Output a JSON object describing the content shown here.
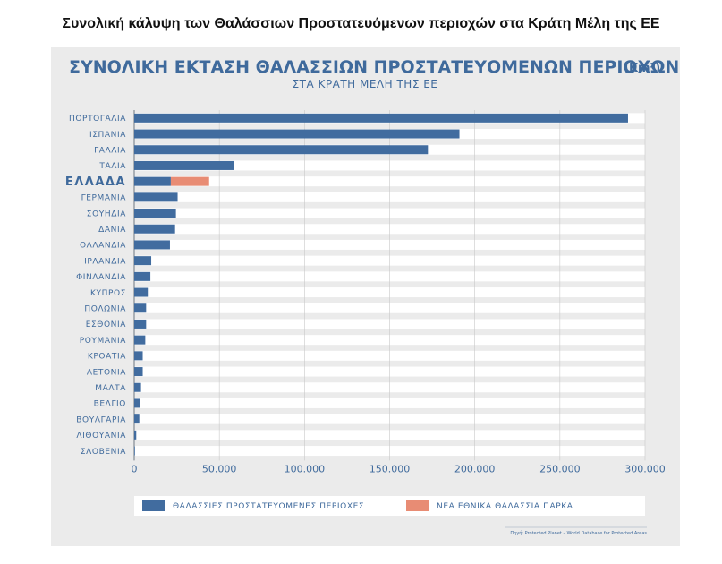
{
  "page": {
    "title": "Συνολική κάλυψη των Θαλάσσιων Προστατευόμενων περιοχών στα Κράτη Μέλη της ΕΕ"
  },
  "chart_data": {
    "type": "bar",
    "orientation": "horizontal",
    "stacked": true,
    "title": "ΣΥΝΟΛΙΚΗ ΕΚΤΑΣΗ ΘΑΛΑΣΣΙΩΝ ΠΡΟΣΤΑΤΕΥΟΜΕΝΩΝ ΠΕΡΙΟΧΩΝ",
    "title_unit": "(Km²)",
    "subtitle": "ΣΤΑ ΚΡΑΤΗ ΜΕΛΗ ΤΗΣ ΕΕ",
    "highlighted_category": "ΕΛΛΑΔΑ",
    "categories": [
      "ΠΟΡΤΟΓΑΛΙΑ",
      "ΙΣΠΑΝΙΑ",
      "ΓΑΛΛΙΑ",
      "ΙΤΑΛΙΑ",
      "ΕΛΛΑΔΑ",
      "ΓΕΡΜΑΝΙΑ",
      "ΣΟΥΗΔΙΑ",
      "ΔΑΝΙΑ",
      "ΟΛΛΑΝΔΙΑ",
      "ΙΡΛΑΝΔΙΑ",
      "ΦΙΝΛΑΝΔΙΑ",
      "ΚΥΠΡΟΣ",
      "ΠΟΛΩΝΙΑ",
      "ΕΣΘΟΝΙΑ",
      "ΡΟΥΜΑΝΙΑ",
      "ΚΡΟΑΤΙΑ",
      "ΛΕΤΟΝΙΑ",
      "ΜΑΛΤΑ",
      "ΒΕΛΓΙΟ",
      "ΒΟΥΛΓΑΡΙΑ",
      "ΛΙΘΟΥΑΝΙΑ",
      "ΣΛΟΒΕΝΙΑ"
    ],
    "series": [
      {
        "name": "ΘΑΛΑΣΣΙΕΣ ΠΡΟΣΤΑΤΕΥΟΜΕΝΕΣ ΠΕΡΙΟΧΕΣ",
        "color": "#416c9f",
        "values": [
          290000,
          191000,
          172500,
          58500,
          21500,
          25500,
          24500,
          24000,
          21000,
          10000,
          9500,
          8000,
          7000,
          7000,
          6500,
          5000,
          5000,
          4000,
          3500,
          3000,
          1200,
          300
        ]
      },
      {
        "name": "ΝΕΑ ΕΘΝΙΚΑ ΘΑΛΑΣΣΙΑ ΠΑΡΚΑ",
        "color": "#e88c74",
        "values": [
          0,
          0,
          0,
          0,
          22500,
          0,
          0,
          0,
          0,
          0,
          0,
          0,
          0,
          0,
          0,
          0,
          0,
          0,
          0,
          0,
          0,
          0
        ]
      }
    ],
    "xlim": [
      0,
      300000
    ],
    "x_ticks": [
      0,
      50000,
      100000,
      150000,
      200000,
      250000,
      300000
    ],
    "x_tick_labels": [
      "0",
      "50.000",
      "100.000",
      "150.000",
      "200.000",
      "250.000",
      "300.000"
    ],
    "grid": true,
    "legend_position": "bottom",
    "source": "Πηγή: Protected Planet – World Database for Protected Areas",
    "colors": {
      "primary": "#416c9f",
      "accent": "#e88c74",
      "panel_bg": "#ebebeb",
      "row_band": "#ffffff",
      "text": "#3f6a9c"
    }
  }
}
